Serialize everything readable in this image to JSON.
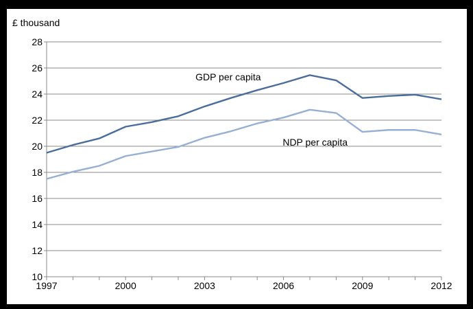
{
  "chart_data": {
    "type": "line",
    "ylabel": "£ thousand",
    "ylim": [
      10,
      28
    ],
    "xlim": [
      1997,
      2012
    ],
    "y_ticks": [
      "10",
      "12",
      "14",
      "16",
      "18",
      "20",
      "22",
      "24",
      "26",
      "28"
    ],
    "x_ticks": [
      "1997",
      "2000",
      "2003",
      "2006",
      "2009",
      "2012"
    ],
    "x": [
      1997,
      1998,
      1999,
      2000,
      2001,
      2002,
      2003,
      2004,
      2005,
      2006,
      2007,
      2008,
      2009,
      2010,
      2011,
      2012
    ],
    "grid": "horizontal",
    "legend": "inline labels",
    "series": [
      {
        "name": "GDP per capita",
        "color": "#4a6d9c",
        "values": [
          19.5,
          20.1,
          20.6,
          21.5,
          21.85,
          22.3,
          23.05,
          23.7,
          24.3,
          24.85,
          25.45,
          25.05,
          23.7,
          23.85,
          23.95,
          23.6
        ]
      },
      {
        "name": "NDP per capita",
        "color": "#97afd4",
        "values": [
          17.5,
          18.05,
          18.5,
          19.25,
          19.6,
          19.95,
          20.65,
          21.15,
          21.75,
          22.2,
          22.8,
          22.55,
          21.1,
          21.25,
          21.25,
          20.9
        ]
      }
    ]
  }
}
